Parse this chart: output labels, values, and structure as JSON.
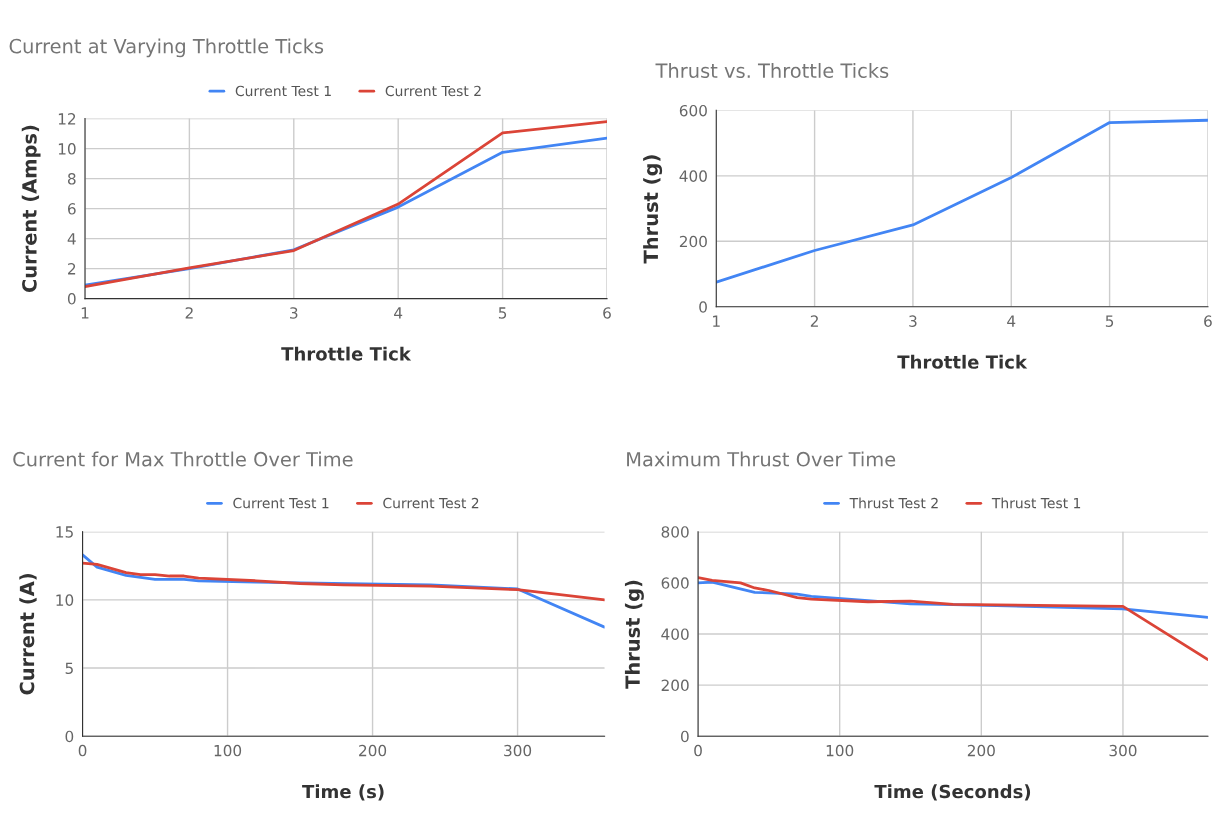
{
  "chart_data": [
    {
      "type": "line",
      "title": "Current at Varying Throttle Ticks",
      "xlabel": "Throttle Tick",
      "ylabel": "Current (Amps)",
      "x": [
        1,
        2,
        3,
        4,
        5,
        6
      ],
      "xlim": [
        1,
        6
      ],
      "xticks": [
        1,
        2,
        3,
        4,
        5,
        6
      ],
      "ylim": [
        0,
        12
      ],
      "yticks": [
        0,
        2,
        4,
        6,
        8,
        10,
        12
      ],
      "grid": true,
      "legend": "top",
      "series": [
        {
          "name": "Current Test 1",
          "color": "#4285f4",
          "values": [
            0.9,
            2.0,
            3.25,
            6.1,
            9.75,
            10.7
          ]
        },
        {
          "name": "Current Test 2",
          "color": "#db4437",
          "values": [
            0.8,
            2.05,
            3.2,
            6.3,
            11.05,
            11.8
          ]
        }
      ]
    },
    {
      "type": "line",
      "title": "Thrust vs. Throttle Ticks",
      "xlabel": "Throttle Tick",
      "ylabel": "Thrust (g)",
      "x": [
        1,
        2,
        3,
        4,
        5,
        6
      ],
      "xlim": [
        1,
        6
      ],
      "xticks": [
        1,
        2,
        3,
        4,
        5,
        6
      ],
      "ylim": [
        0,
        600
      ],
      "yticks": [
        0,
        200,
        400,
        600
      ],
      "grid": true,
      "series": [
        {
          "color": "#4285f4",
          "values": [
            75,
            172,
            250,
            395,
            563,
            570
          ]
        }
      ]
    },
    {
      "type": "line",
      "title": "Current for Max Throttle Over Time",
      "xlabel": "Time (s)",
      "ylabel": "Current (A)",
      "xlim": [
        0,
        360
      ],
      "xticks": [
        0,
        100,
        200,
        300
      ],
      "ylim": [
        0,
        15
      ],
      "yticks": [
        0,
        5,
        10,
        15
      ],
      "grid": true,
      "legend": "top",
      "series": [
        {
          "name": "Current Test 1",
          "color": "#4285f4",
          "x": [
            0,
            10,
            30,
            50,
            70,
            80,
            120,
            150,
            240,
            300,
            360
          ],
          "values": [
            13.3,
            12.4,
            11.8,
            11.5,
            11.5,
            11.4,
            11.3,
            11.25,
            11.1,
            10.8,
            8.0
          ]
        },
        {
          "name": "Current Test 2",
          "color": "#db4437",
          "x": [
            0,
            10,
            30,
            40,
            50,
            60,
            70,
            80,
            120,
            150,
            180,
            240,
            300,
            360
          ],
          "values": [
            12.7,
            12.6,
            12.0,
            11.85,
            11.85,
            11.75,
            11.75,
            11.6,
            11.4,
            11.2,
            11.1,
            11.0,
            10.75,
            10.0
          ]
        }
      ]
    },
    {
      "type": "line",
      "title": "Maximum Thrust Over Time",
      "xlabel": "Time (Seconds)",
      "ylabel": "Thrust (g)",
      "xlim": [
        0,
        360
      ],
      "xticks": [
        0,
        100,
        200,
        300
      ],
      "ylim": [
        0,
        800
      ],
      "yticks": [
        0,
        200,
        400,
        600,
        800
      ],
      "grid": true,
      "legend": "top",
      "series": [
        {
          "name": "Thrust Test 2",
          "color": "#4285f4",
          "x": [
            0,
            10,
            40,
            70,
            80,
            120,
            150,
            180,
            300,
            360
          ],
          "values": [
            600,
            603,
            563,
            556,
            547,
            530,
            518,
            515,
            498,
            465
          ]
        },
        {
          "name": "Thrust Test 1",
          "color": "#db4437",
          "x": [
            0,
            10,
            30,
            40,
            50,
            70,
            80,
            120,
            150,
            180,
            300,
            360
          ],
          "values": [
            620,
            610,
            600,
            580,
            570,
            542,
            536,
            526,
            528,
            516,
            508,
            300
          ]
        }
      ]
    }
  ]
}
